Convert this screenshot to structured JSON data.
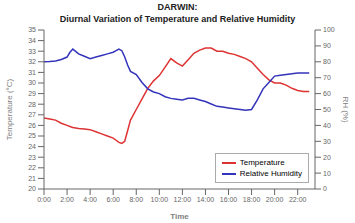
{
  "chart_data": {
    "type": "line",
    "title": "DARWIN:",
    "subtitle": "Diurnal Variation of Temperature and Relative Humidity",
    "xlabel": "Time",
    "ylabel": "Temperature (°C)",
    "y2label": "RH (%)",
    "x": [
      0,
      0.5,
      1,
      1.5,
      2,
      2.25,
      2.5,
      3,
      3.5,
      4,
      4.5,
      5,
      5.5,
      6,
      6.25,
      6.5,
      6.75,
      7,
      7.25,
      7.5,
      8,
      8.5,
      9,
      9.5,
      10,
      10.5,
      11,
      11.5,
      12,
      12.5,
      13,
      13.5,
      14,
      14.5,
      15,
      15.5,
      16,
      16.5,
      17,
      17.5,
      18,
      18.5,
      19,
      19.5,
      20,
      20.5,
      21,
      21.5,
      22,
      22.5,
      23
    ],
    "xlim": [
      0,
      23.5
    ],
    "xticks": [
      {
        "value": 0,
        "label": "0:00"
      },
      {
        "value": 2,
        "label": "2:00"
      },
      {
        "value": 4,
        "label": "4:00"
      },
      {
        "value": 6,
        "label": "6:00"
      },
      {
        "value": 8,
        "label": "8:00"
      },
      {
        "value": 10,
        "label": "10:00"
      },
      {
        "value": 12,
        "label": "12:00"
      },
      {
        "value": 14,
        "label": "14:00"
      },
      {
        "value": 16,
        "label": "16:00"
      },
      {
        "value": 18,
        "label": "18:00"
      },
      {
        "value": 20,
        "label": "20:00"
      },
      {
        "value": 22,
        "label": "22:00"
      }
    ],
    "ylim": [
      20,
      35
    ],
    "yticks": [
      20,
      21,
      22,
      23,
      24,
      25,
      26,
      27,
      28,
      29,
      30,
      31,
      32,
      33,
      34,
      35
    ],
    "y2lim": [
      0,
      100
    ],
    "y2ticks": [
      0,
      10,
      20,
      30,
      40,
      50,
      60,
      70,
      80,
      90,
      100
    ],
    "series": [
      {
        "name": "Temperature",
        "color": "#dd3333",
        "values": [
          26.7,
          26.6,
          26.5,
          26.2,
          26.0,
          25.9,
          25.8,
          25.7,
          25.65,
          25.6,
          25.4,
          25.2,
          25.0,
          24.8,
          24.6,
          24.4,
          24.3,
          24.5,
          25.5,
          26.5,
          27.5,
          28.5,
          29.5,
          30.2,
          30.7,
          31.5,
          32.3,
          31.9,
          31.6,
          32.2,
          32.8,
          33.1,
          33.3,
          33.3,
          33.0,
          33.0,
          32.8,
          32.7,
          32.5,
          32.3,
          32.0,
          31.4,
          30.8,
          30.3,
          30.0,
          30.0,
          29.8,
          29.5,
          29.3,
          29.2,
          29.2
        ]
      },
      {
        "name": "Relative Humidity",
        "color": "#3333bb",
        "axis": "y2",
        "values": [
          80,
          80.2,
          80.5,
          81.5,
          83,
          86,
          88,
          85,
          83.5,
          82,
          83,
          84,
          85,
          86,
          87,
          88,
          87,
          83,
          78,
          74,
          72,
          67,
          63,
          61,
          60,
          58,
          57,
          56.5,
          56,
          57,
          57,
          56,
          55,
          53.5,
          52,
          51.5,
          51,
          50.5,
          50,
          49.5,
          50,
          56,
          63,
          67,
          71,
          71.5,
          72,
          72.5,
          73,
          73,
          73
        ]
      }
    ],
    "grid": false,
    "legend": "lower right"
  }
}
